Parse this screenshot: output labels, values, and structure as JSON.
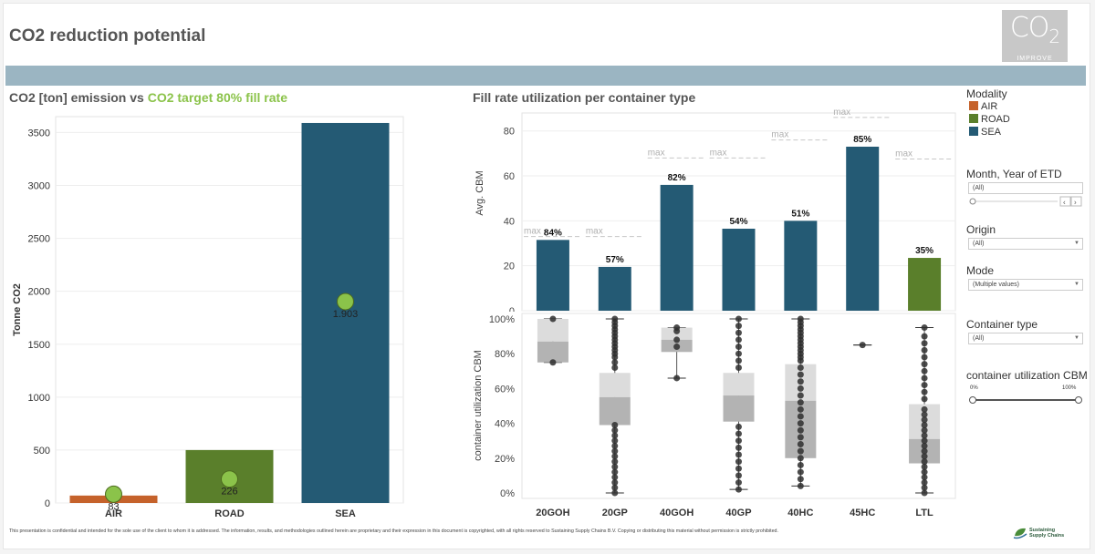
{
  "header": {
    "title": "CO2 reduction potential",
    "logo_main": "CO",
    "logo_sub": "2",
    "logo_tag": "IMPROVE"
  },
  "emission_chart": {
    "title_part1": "CO2 [ton] emission vs ",
    "title_part2": "CO2 target 80% fill rate"
  },
  "fill_chart": {
    "title": "Fill rate utilization per container type",
    "max_label": "max"
  },
  "legend": {
    "title": "Modality",
    "items": [
      {
        "label": "AIR",
        "color": "#c5622b"
      },
      {
        "label": "ROAD",
        "color": "#5a7f2b"
      },
      {
        "label": "SEA",
        "color": "#245a74"
      }
    ]
  },
  "filters": {
    "month": {
      "label": "Month, Year of ETD",
      "value": "(All)"
    },
    "origin": {
      "label": "Origin",
      "value": "(All)"
    },
    "mode": {
      "label": "Mode",
      "value": "(Multiple values)"
    },
    "container_type": {
      "label": "Container type",
      "value": "(All)"
    },
    "utilization": {
      "label": "container utilization CBM",
      "min": "0%",
      "max": "100%"
    }
  },
  "footer": {
    "disclaimer": "This presentation is confidential and intended for the sole use of the client to whom it is addressed. The information, results, and methodologies outlined herein are proprietary and their expression in this document is copyrighted, with all rights reserved to Sustaining Supply Chains B.V. Copying or distributing this material without permission is strictly prohibited.",
    "company_line1": "Sustaining",
    "company_line2": "Supply Chains"
  },
  "chart_data": [
    {
      "type": "bar",
      "title": "CO2 [ton] emission vs CO2 target 80% fill rate",
      "ylabel": "Tonne CO2",
      "xlabel": "",
      "categories": [
        "AIR",
        "ROAD",
        "SEA"
      ],
      "series": [
        {
          "values": [
            70,
            500,
            3590
          ]
        },
        {
          "name": "CO2 target 80% fill rate",
          "values": [
            83,
            226,
            1903
          ]
        }
      ],
      "target_labels": [
        "83",
        "226",
        "1.903"
      ],
      "colors": [
        "#c5622b",
        "#5a7f2b",
        "#245a74"
      ],
      "target_color": "#8bc34a",
      "ylim": [
        0,
        3650
      ],
      "yticks": [
        0,
        500,
        1000,
        1500,
        2000,
        2500,
        3000,
        3500
      ],
      "grid": true
    },
    {
      "type": "bar",
      "title": "Fill rate utilization per container type",
      "ylabel": "Avg. CBM",
      "categories": [
        "20GOH",
        "20GP",
        "40GOH",
        "40GP",
        "40HC",
        "45HC",
        "LTL"
      ],
      "series": [
        {
          "values": [
            31.5,
            19.5,
            56,
            36.5,
            40,
            73,
            23.5
          ]
        }
      ],
      "pct_labels": [
        "84%",
        "57%",
        "82%",
        "54%",
        "51%",
        "85%",
        "35%"
      ],
      "max_values": [
        33,
        33,
        68,
        68,
        76,
        86,
        67.5
      ],
      "colors": [
        "#245a74",
        "#245a74",
        "#245a74",
        "#245a74",
        "#245a74",
        "#245a74",
        "#5a7f2b"
      ],
      "ylim": [
        0,
        88
      ],
      "yticks": [
        0,
        20,
        40,
        60,
        80
      ]
    },
    {
      "type": "box",
      "ylabel": "container utilization CBM",
      "categories": [
        "20GOH",
        "20GP",
        "40GOH",
        "40GP",
        "40HC",
        "45HC",
        "LTL"
      ],
      "ylim": [
        0,
        100
      ],
      "yticks": [
        "0%",
        "20%",
        "40%",
        "60%",
        "80%",
        "100%"
      ],
      "boxes": [
        {
          "whisker_low": 75,
          "q1": 75,
          "median": 87,
          "q3": 100,
          "whisker_high": 100,
          "points": [
            75,
            100
          ]
        },
        {
          "whisker_low": 0,
          "q1": 39,
          "median": 55,
          "q3": 69,
          "whisker_high": 100,
          "points": [
            0,
            3,
            6,
            9,
            12,
            15,
            18,
            21,
            24,
            27,
            30,
            33,
            36,
            39,
            72,
            75,
            78,
            80,
            82,
            84,
            86,
            88,
            90,
            92,
            94,
            96,
            98,
            100
          ]
        },
        {
          "whisker_low": 66,
          "q1": 81,
          "median": 88,
          "q3": 95,
          "whisker_high": 95,
          "points": [
            66,
            84,
            88,
            93,
            95
          ]
        },
        {
          "whisker_low": 2,
          "q1": 41,
          "median": 56,
          "q3": 69,
          "whisker_high": 100,
          "points": [
            2,
            6,
            10,
            14,
            18,
            22,
            26,
            30,
            34,
            38,
            72,
            76,
            80,
            84,
            88,
            92,
            96,
            100
          ]
        },
        {
          "whisker_low": 4,
          "q1": 20,
          "median": 53,
          "q3": 74,
          "whisker_high": 100,
          "points": [
            4,
            8,
            12,
            16,
            20,
            24,
            28,
            32,
            36,
            40,
            44,
            48,
            52,
            56,
            60,
            64,
            68,
            72,
            76,
            78,
            80,
            82,
            84,
            86,
            88,
            90,
            92,
            94,
            96,
            98,
            100
          ]
        },
        {
          "whisker_low": 85,
          "q1": 85,
          "median": 85,
          "q3": 85,
          "whisker_high": 85,
          "points": [
            85
          ]
        },
        {
          "whisker_low": 0,
          "q1": 17,
          "median": 31,
          "q3": 51,
          "whisker_high": 95,
          "points": [
            0,
            3,
            6,
            9,
            12,
            15,
            18,
            21,
            24,
            27,
            30,
            33,
            36,
            39,
            42,
            45,
            48,
            54,
            58,
            62,
            66,
            70,
            74,
            78,
            82,
            86,
            90,
            95
          ]
        }
      ]
    }
  ]
}
